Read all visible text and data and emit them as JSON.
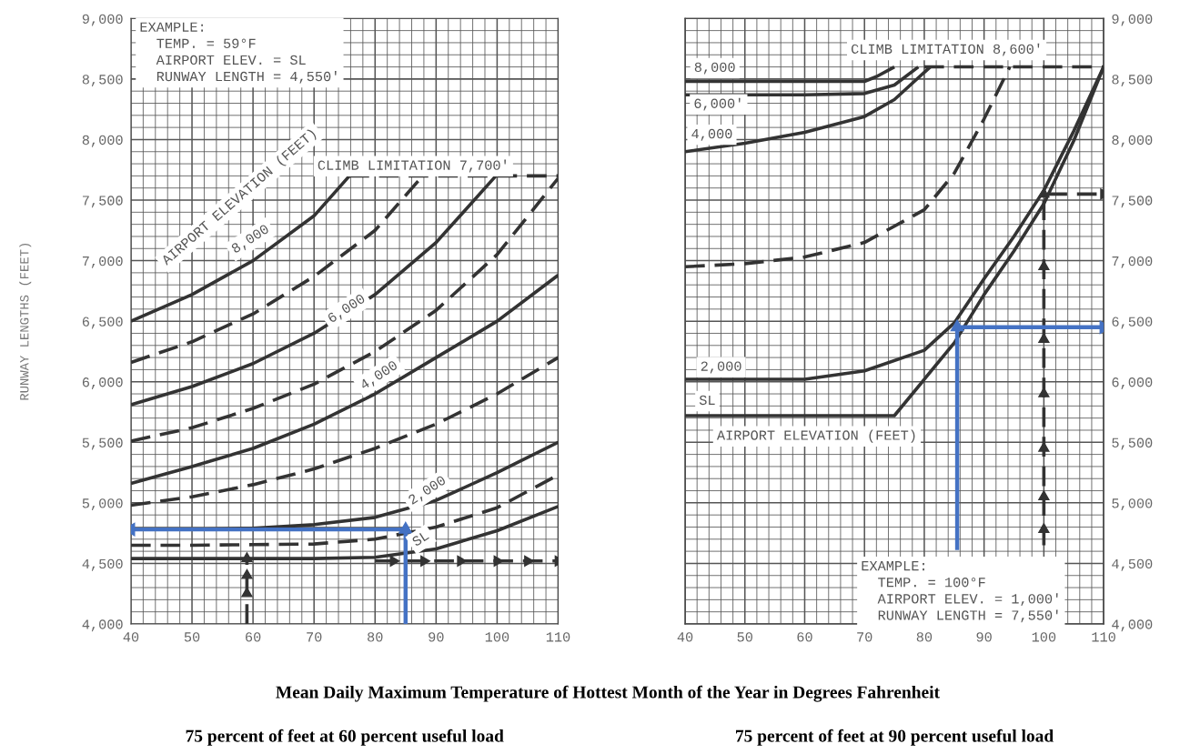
{
  "chart_data": [
    {
      "type": "line",
      "title": "75 percent of feet at 60 percent useful load",
      "xlabel": "Mean Daily Maximum Temperature of Hottest Month of the Year in Degrees Fahrenheit",
      "ylabel": "RUNWAY LENGTHS (FEET)",
      "xlim": [
        40,
        110
      ],
      "xticks": [
        40,
        50,
        60,
        70,
        80,
        90,
        100,
        110
      ],
      "ylim": [
        4000,
        9000
      ],
      "yticks": [
        {
          "value": 4000,
          "label": "4,000"
        },
        {
          "value": 4500,
          "label": "4,500"
        },
        {
          "value": 5000,
          "label": "5,000"
        },
        {
          "value": 5500,
          "label": "5,500"
        },
        {
          "value": 6000,
          "label": "6,000"
        },
        {
          "value": 6500,
          "label": "6,500"
        },
        {
          "value": 7000,
          "label": "7,000"
        },
        {
          "value": 7500,
          "label": "7,500"
        },
        {
          "value": 8000,
          "label": "8,000"
        },
        {
          "value": 8500,
          "label": "8,500"
        },
        {
          "value": 9000,
          "label": "9,000"
        }
      ],
      "grid": true,
      "annotations": [
        "EXAMPLE:\n  TEMP. = 59°F\n  AIRPORT ELEV. = SL\n  RUNWAY LENGTH = 4,550'",
        "AIRPORT ELEVATION (FEET)",
        "8,000",
        "6,000",
        "4,000",
        "2,000",
        "SL",
        "CLIMB LIMITATION 7,700'"
      ],
      "series": [
        {
          "color": "#333333",
          "line_style": "solid",
          "x": [
            40,
            50,
            60,
            70,
            75.8
          ],
          "values": [
            6500,
            6720,
            7000,
            7370,
            7700
          ]
        },
        {
          "type": "line",
          "color": "#333333",
          "line_style": "dashed",
          "x": [
            40,
            50,
            60,
            70,
            80,
            87.8
          ],
          "values": [
            6160,
            6330,
            6560,
            6870,
            7250,
            7700
          ]
        },
        {
          "type": "line",
          "color": "#333333",
          "line_style": "solid",
          "x": [
            40,
            50,
            60,
            70,
            80,
            90,
            99.8
          ],
          "values": [
            5810,
            5960,
            6150,
            6400,
            6720,
            7150,
            7700
          ]
        },
        {
          "type": "line",
          "color": "#333333",
          "line_style": "dashed",
          "x": [
            40,
            50,
            60,
            70,
            80,
            90,
            100,
            110
          ],
          "values": [
            5510,
            5620,
            5780,
            5980,
            6250,
            6590,
            7050,
            7680
          ]
        },
        {
          "type": "line",
          "color": "#333333",
          "line_style": "solid",
          "x": [
            40,
            50,
            60,
            70,
            80,
            90,
            100,
            110
          ],
          "values": [
            5160,
            5300,
            5450,
            5650,
            5900,
            6200,
            6500,
            6880
          ]
        },
        {
          "type": "line",
          "color": "#333333",
          "line_style": "dashed",
          "x": [
            40,
            50,
            60,
            70,
            80,
            90,
            100,
            110
          ],
          "values": [
            4980,
            5050,
            5150,
            5280,
            5450,
            5650,
            5900,
            6200
          ]
        },
        {
          "type": "line",
          "color": "#333333",
          "line_style": "solid",
          "x": [
            40,
            50,
            60,
            70,
            80,
            90,
            100,
            110
          ],
          "values": [
            4780,
            4780,
            4790,
            4820,
            4880,
            5020,
            5250,
            5500
          ]
        },
        {
          "type": "line",
          "color": "#333333",
          "line_style": "dashed",
          "x": [
            40,
            50,
            60,
            70,
            80,
            90,
            100,
            110
          ],
          "values": [
            4650,
            4650,
            4655,
            4660,
            4700,
            4800,
            4960,
            5230
          ]
        },
        {
          "type": "line",
          "color": "#333333",
          "line_style": "solid",
          "x": [
            40,
            50,
            60,
            70,
            80,
            90,
            100,
            110
          ],
          "values": [
            4540,
            4540,
            4540,
            4540,
            4550,
            4620,
            4770,
            4970
          ]
        },
        {
          "type": "line",
          "color": "#333333",
          "line_style": "dashed",
          "x": [
            75.8,
            110
          ],
          "values": [
            7700,
            7700
          ]
        },
        {
          "type": "line",
          "color": "#333333",
          "line_style": "dashed",
          "marker": "triangle",
          "x": [
            59,
            59,
            59,
            59
          ],
          "values": [
            4000,
            4250,
            4400,
            4540
          ]
        },
        {
          "type": "line",
          "color": "#333333",
          "line_style": "dashed",
          "marker": "triangle",
          "x": [
            80,
            83,
            88,
            94,
            100,
            105,
            110
          ],
          "values": [
            4520,
            4520,
            4520,
            4520,
            4520,
            4520,
            4520
          ]
        },
        {
          "type": "line",
          "color": "#4472c4",
          "line_style": "solid",
          "marker": "triangle",
          "x": [
            85,
            85,
            40
          ],
          "values": [
            4000,
            4780,
            4780
          ]
        }
      ]
    },
    {
      "type": "line",
      "title": "75 percent of feet at 90 percent useful load",
      "xlim": [
        40,
        110
      ],
      "xticks": [
        40,
        50,
        60,
        70,
        80,
        90,
        100,
        110
      ],
      "y2lim": [
        4000,
        9000
      ],
      "y2ticks": [
        {
          "value": 4000,
          "label": "4,000"
        },
        {
          "value": 4500,
          "label": "4,500"
        },
        {
          "value": 5000,
          "label": "5,000"
        },
        {
          "value": 5500,
          "label": "5,500"
        },
        {
          "value": 6000,
          "label": "6,000"
        },
        {
          "value": 6500,
          "label": "6,500"
        },
        {
          "value": 7000,
          "label": "7,000"
        },
        {
          "value": 7500,
          "label": "7,500"
        },
        {
          "value": 8000,
          "label": "8,000"
        },
        {
          "value": 8500,
          "label": "8,500"
        },
        {
          "value": 9000,
          "label": "9,000"
        }
      ],
      "grid": true,
      "annotations": [
        "AIRPORT ELEVATION (FEET)",
        "EXAMPLE:\n  TEMP. = 100°F\n  AIRPORT ELEV. = 1,000'\n  RUNWAY LENGTH = 7,550'",
        "8,000",
        "6,000'",
        "4,000",
        "2,000",
        "SL",
        "CLIMB LIMITATION 8,600'"
      ],
      "series": [
        {
          "type": "line",
          "axis": "y2",
          "color": "#333333",
          "line_style": "solid",
          "x": [
            40,
            50,
            60,
            70,
            72,
            75
          ],
          "values": [
            8480,
            8480,
            8480,
            8480,
            8520,
            8600
          ]
        },
        {
          "type": "line",
          "axis": "y2",
          "color": "#333333",
          "line_style": "solid",
          "x": [
            40,
            50,
            60,
            70,
            75,
            79
          ],
          "values": [
            8370,
            8370,
            8370,
            8380,
            8450,
            8600
          ]
        },
        {
          "type": "line",
          "axis": "y2",
          "color": "#333333",
          "line_style": "solid",
          "x": [
            40,
            50,
            60,
            70,
            75,
            81
          ],
          "values": [
            7900,
            7970,
            8060,
            8190,
            8330,
            8600
          ]
        },
        {
          "type": "line",
          "axis": "y2",
          "color": "#333333",
          "line_style": "dashed",
          "x": [
            40,
            50,
            60,
            70,
            80,
            85,
            90,
            94.3
          ],
          "values": [
            6950,
            6975,
            7030,
            7150,
            7420,
            7720,
            8170,
            8600
          ]
        },
        {
          "type": "line",
          "axis": "y2",
          "color": "#333333",
          "line_style": "solid",
          "x": [
            40,
            50,
            60,
            70,
            80,
            85,
            90,
            95,
            100,
            105,
            110
          ],
          "values": [
            6020,
            6020,
            6020,
            6090,
            6260,
            6485,
            6850,
            7200,
            7580,
            8070,
            8600
          ]
        },
        {
          "type": "line",
          "axis": "y2",
          "color": "#333333",
          "line_style": "solid",
          "x": [
            40,
            50,
            60,
            70,
            75,
            85,
            90,
            95,
            100,
            105,
            110
          ],
          "values": [
            5720,
            5720,
            5720,
            5720,
            5720,
            6320,
            6720,
            7080,
            7470,
            7990,
            8600
          ]
        },
        {
          "type": "line",
          "axis": "y2",
          "color": "#333333",
          "line_style": "dashed",
          "x": [
            80,
            110
          ],
          "values": [
            8600,
            8600
          ]
        },
        {
          "type": "line",
          "axis": "y2",
          "color": "#333333",
          "line_style": "dashed",
          "marker": "triangle",
          "x": [
            100,
            100,
            100,
            100,
            100,
            100,
            100,
            100,
            110
          ],
          "values": [
            4650,
            4780,
            5050,
            5450,
            5900,
            6350,
            6950,
            7550,
            7550
          ]
        },
        {
          "type": "line",
          "axis": "y2",
          "color": "#4472c4",
          "line_style": "solid",
          "marker": "triangle",
          "x": [
            85.5,
            85.5,
            110
          ],
          "values": [
            4610,
            6450,
            6450
          ]
        }
      ]
    }
  ]
}
